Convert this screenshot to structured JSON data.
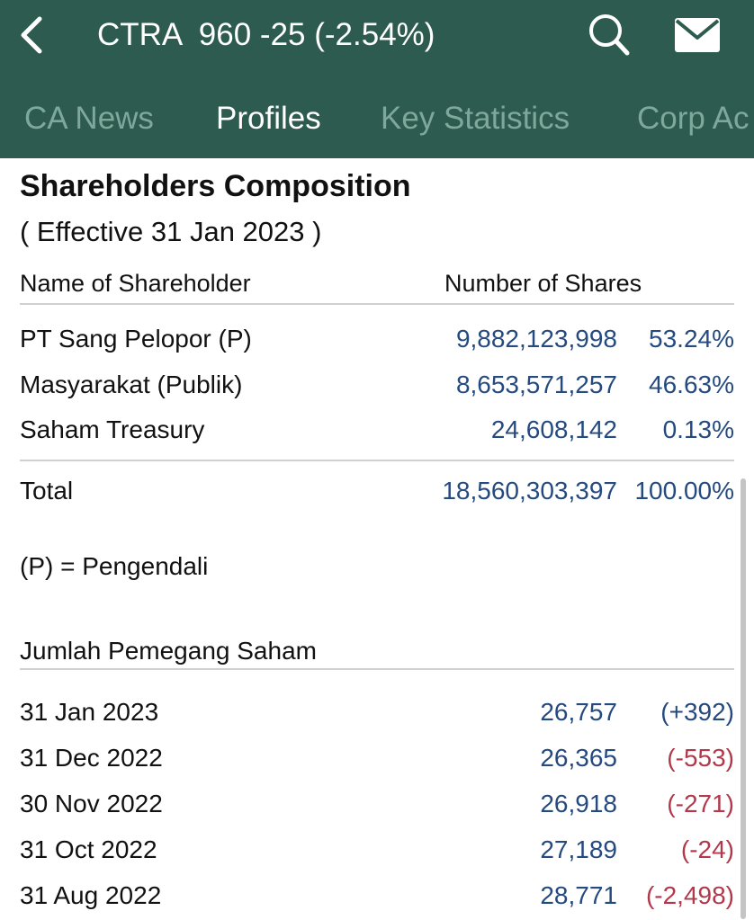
{
  "header": {
    "title": "CTRA  960 -25 (-2.54%)",
    "icons": {
      "back": "chevron-left-icon",
      "search": "search-icon",
      "mail": "mail-icon"
    },
    "colors": {
      "background": "#2d5b4f",
      "tab_inactive": "#7fa89c",
      "tab_active": "#ffffff"
    }
  },
  "tabs": [
    {
      "label": "CA News"
    },
    {
      "label": "Profiles"
    },
    {
      "label": "Key Statistics"
    },
    {
      "label": "Corp Ac"
    }
  ],
  "active_tab": "Profiles",
  "composition": {
    "title": "Shareholders Composition",
    "effective": "( Effective 31 Jan 2023 )",
    "col_name": "Name of Shareholder",
    "col_shares": "Number of Shares",
    "rows": [
      {
        "name": "PT Sang Pelopor (P)",
        "shares": "9,882,123,998",
        "pct": "53.24%"
      },
      {
        "name": "Masyarakat (Publik)",
        "shares": "8,653,571,257",
        "pct": "46.63%"
      },
      {
        "name": "Saham Treasury",
        "shares": "24,608,142",
        "pct": "0.13%"
      }
    ],
    "total": {
      "label": "Total",
      "shares": "18,560,303,397",
      "pct": "100.00%"
    },
    "note": "(P) = Pengendali"
  },
  "holders": {
    "title": "Jumlah Pemegang Saham",
    "rows": [
      {
        "date": "31 Jan 2023",
        "count": "26,757",
        "change": "(+392)",
        "positive": true
      },
      {
        "date": "31 Dec 2022",
        "count": "26,365",
        "change": "(-553)",
        "positive": false
      },
      {
        "date": "30 Nov 2022",
        "count": "26,918",
        "change": "(-271)",
        "positive": false
      },
      {
        "date": "31 Oct 2022",
        "count": "27,189",
        "change": "(-24)",
        "positive": false
      },
      {
        "date": "31 Aug 2022",
        "count": "28,771",
        "change": "(-2,498)",
        "positive": false
      }
    ]
  },
  "colors": {
    "value_blue": "#254a7f",
    "negative_red": "#b2384b"
  }
}
